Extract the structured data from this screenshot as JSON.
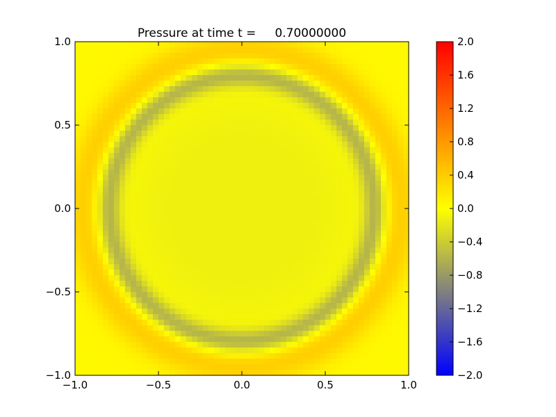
{
  "chart_data": [
    {
      "type": "heatmap",
      "title": "Pressure at time t =     0.70000000",
      "xlabel": "",
      "ylabel": "",
      "xlim": [
        -1.0,
        1.0
      ],
      "ylim": [
        -1.0,
        1.0
      ],
      "x_ticks": [
        "−1.0",
        "−0.5",
        "0.0",
        "0.5",
        "1.0"
      ],
      "y_ticks": [
        "−1.0",
        "−0.5",
        "0.0",
        "0.5",
        "1.0"
      ],
      "x_tick_values": [
        -1.0,
        -0.5,
        0.0,
        0.5,
        1.0
      ],
      "y_tick_values": [
        -1.0,
        -0.5,
        0.0,
        0.5,
        1.0
      ],
      "grid": false,
      "field_description": "circular pressure wave",
      "field": {
        "background_value": 0.05,
        "center_value": -0.12,
        "trough_value": -0.62,
        "trough_radius": 0.8,
        "trough_width": 0.07,
        "crest_value": 0.38,
        "crest_radius": 0.95,
        "crest_width": 0.11
      },
      "colorbar": {
        "vmin": -2.0,
        "vmax": 2.0,
        "ticks": [
          "2.0",
          "1.6",
          "1.2",
          "0.8",
          "0.4",
          "0.0",
          "−0.4",
          "−0.8",
          "−1.2",
          "−1.6",
          "−2.0"
        ],
        "tick_values": [
          2.0,
          1.6,
          1.2,
          0.8,
          0.4,
          0.0,
          -0.4,
          -0.8,
          -1.2,
          -1.6,
          -2.0
        ],
        "colormap": [
          {
            "value": -2.0,
            "color": "#0000ff"
          },
          {
            "value": -1.0,
            "color": "#808080"
          },
          {
            "value": 0.0,
            "color": "#ffff00"
          },
          {
            "value": 2.0,
            "color": "#ff0000"
          }
        ]
      }
    }
  ]
}
